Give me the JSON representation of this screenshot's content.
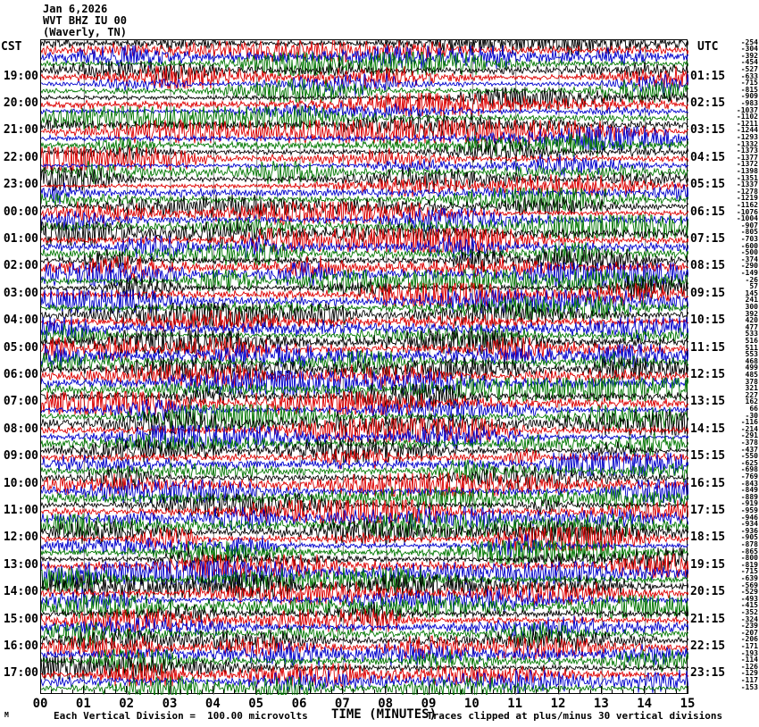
{
  "header": {
    "date_line": "Jan 6,2026",
    "station_line": "WVT BHZ IU 00",
    "location_line": "(Waverly, TN)"
  },
  "axes": {
    "left_label": "CST",
    "right_label": "UTC",
    "left_times": [
      "19:00",
      "20:00",
      "21:00",
      "22:00",
      "23:00",
      "00:00",
      "01:00",
      "02:00",
      "03:00",
      "04:00",
      "05:00",
      "06:00",
      "07:00",
      "08:00",
      "09:00",
      "10:00",
      "11:00",
      "12:00",
      "13:00",
      "14:00",
      "15:00",
      "16:00",
      "17:00"
    ],
    "right_times": [
      "01:15",
      "02:15",
      "03:15",
      "04:15",
      "05:15",
      "06:15",
      "07:15",
      "08:15",
      "09:15",
      "10:15",
      "11:15",
      "12:15",
      "13:15",
      "14:15",
      "15:15",
      "16:15",
      "17:15",
      "18:15",
      "19:15",
      "20:15",
      "21:15",
      "22:15",
      "23:15"
    ],
    "x_ticks": [
      "00",
      "01",
      "02",
      "03",
      "04",
      "05",
      "06",
      "07",
      "08",
      "09",
      "10",
      "11",
      "12",
      "13",
      "14",
      "15"
    ],
    "x_axis_title": "TIME (MINUTES)"
  },
  "trace_offsets": [
    -254,
    -304,
    -392,
    -454,
    -527,
    -633,
    -715,
    -815,
    -909,
    -983,
    -1037,
    -1102,
    -1211,
    -1244,
    -1293,
    -1332,
    -1373,
    -1377,
    -1372,
    -1398,
    -1351,
    -1337,
    -1278,
    -1219,
    -1162,
    -1076,
    -1004,
    -907,
    -805,
    -703,
    -600,
    -500,
    -374,
    -290,
    -149,
    -26,
    57,
    145,
    241,
    300,
    392,
    420,
    477,
    533,
    516,
    511,
    553,
    468,
    499,
    485,
    378,
    321,
    227,
    162,
    66,
    -30,
    -116,
    -214,
    -291,
    -378,
    -437,
    -550,
    -625,
    -698,
    -769,
    -843,
    -849,
    -889,
    -919,
    -959,
    -946,
    -934,
    -936,
    -905,
    -878,
    -865,
    -800,
    -819,
    -715,
    -639,
    -569,
    -529,
    -493,
    -415,
    -352,
    -324,
    -239,
    -207,
    -206,
    -171,
    -193,
    -114,
    -126,
    -129,
    -117,
    -153
  ],
  "footer": {
    "left": "Each Vertical Division =  100.00 microvolts",
    "right": "Traces clipped at plus/minus 30 vertical divisions",
    "watermark": "M"
  },
  "colors": {
    "trace_cycle": [
      "#000000",
      "#dd0000",
      "#0000cc",
      "#007700"
    ],
    "grid": "#808080",
    "border": "#000000",
    "background": "#ffffff"
  },
  "chart_data": {
    "type": "line",
    "subtype": "helicorder-seismogram",
    "title": "WVT BHZ IU 00 (Waverly, TN) Jan 6,2026",
    "xlabel": "TIME (MINUTES)",
    "x_range": [
      0,
      15
    ],
    "minutes_per_line": 15,
    "num_lines": 96,
    "line_colors_cycle": [
      "black",
      "red",
      "blue",
      "green"
    ],
    "left_timezone": "CST",
    "right_timezone": "UTC",
    "left_hour_labels": [
      "19:00",
      "20:00",
      "21:00",
      "22:00",
      "23:00",
      "00:00",
      "01:00",
      "02:00",
      "03:00",
      "04:00",
      "05:00",
      "06:00",
      "07:00",
      "08:00",
      "09:00",
      "10:00",
      "11:00",
      "12:00",
      "13:00",
      "14:00",
      "15:00",
      "16:00",
      "17:00"
    ],
    "right_hour_labels": [
      "01:15",
      "02:15",
      "03:15",
      "04:15",
      "05:15",
      "06:15",
      "07:15",
      "08:15",
      "09:15",
      "10:15",
      "11:15",
      "12:15",
      "13:15",
      "14:15",
      "15:15",
      "16:15",
      "17:15",
      "18:15",
      "19:15",
      "20:15",
      "21:15",
      "22:15",
      "23:15"
    ],
    "right_edge_trace_values": [
      -254,
      -304,
      -392,
      -454,
      -527,
      -633,
      -715,
      -815,
      -909,
      -983,
      -1037,
      -1102,
      -1211,
      -1244,
      -1293,
      -1332,
      -1373,
      -1377,
      -1372,
      -1398,
      -1351,
      -1337,
      -1278,
      -1219,
      -1162,
      -1076,
      -1004,
      -907,
      -805,
      -703,
      -600,
      -500,
      -374,
      -290,
      -149,
      -26,
      57,
      145,
      241,
      300,
      392,
      420,
      477,
      533,
      516,
      511,
      553,
      468,
      499,
      485,
      378,
      321,
      227,
      162,
      66,
      -30,
      -116,
      -214,
      -291,
      -378,
      -437,
      -550,
      -625,
      -698,
      -769,
      -843,
      -849,
      -889,
      -919,
      -959,
      -946,
      -934,
      -936,
      -905,
      -878,
      -865,
      -800,
      -819,
      -715,
      -639,
      -569,
      -529,
      -493,
      -415,
      -352,
      -324,
      -239,
      -207,
      -206,
      -171,
      -193,
      -114,
      -126,
      -129,
      -117,
      -153
    ],
    "scale_note": "Each Vertical Division =  100.00 microvolts",
    "clip_note": "Traces clipped at plus/minus 30 vertical divisions",
    "grid": "vertical gridlines each minute",
    "legend_position": "none"
  }
}
